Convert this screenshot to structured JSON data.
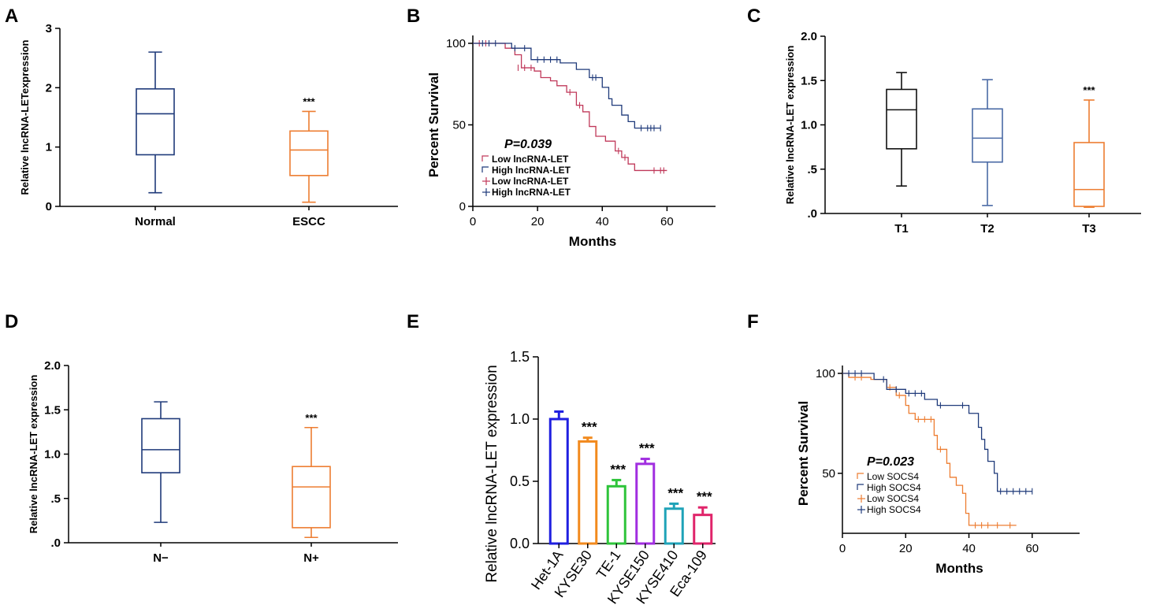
{
  "panels": {
    "A": {
      "letter": "A"
    },
    "B": {
      "letter": "B"
    },
    "C": {
      "letter": "C"
    },
    "D": {
      "letter": "D"
    },
    "E": {
      "letter": "E"
    },
    "F": {
      "letter": "F"
    }
  },
  "chart_data": [
    {
      "panel": "A",
      "type": "box",
      "ylabel": "Relative lncRNA-LETexpression",
      "ylim": [
        0,
        3
      ],
      "yticks": [
        "0",
        "1",
        "2",
        "3"
      ],
      "categories": [
        "Normal",
        "ESCC"
      ],
      "boxes": [
        {
          "name": "Normal",
          "min": 0.23,
          "q1": 0.87,
          "median": 1.56,
          "q3": 1.98,
          "max": 2.6,
          "color": "#1f3a7a"
        },
        {
          "name": "ESCC",
          "min": 0.07,
          "q1": 0.52,
          "median": 0.95,
          "q3": 1.27,
          "max": 1.6,
          "color": "#ed7d31",
          "annotation": "***"
        }
      ]
    },
    {
      "panel": "B",
      "type": "survival",
      "xlabel": "Months",
      "ylabel": "Percent Survival",
      "xlim": [
        0,
        75
      ],
      "ylim": [
        0,
        100
      ],
      "xticks": [
        "0",
        "20",
        "40",
        "60"
      ],
      "yticks": [
        "0",
        "50",
        "100"
      ],
      "pvalue": "P=0.039",
      "legend": [
        "Low lncRNA-LET",
        "High lncRNA-LET",
        "Low lncRNA-LET",
        "High lncRNA-LET"
      ],
      "series": [
        {
          "name": "Low lncRNA-LET",
          "color": "#c0395a",
          "steps": [
            [
              0,
              100
            ],
            [
              6,
              100
            ],
            [
              10,
              97
            ],
            [
              13,
              93
            ],
            [
              15,
              85
            ],
            [
              19,
              83
            ],
            [
              21,
              79
            ],
            [
              24,
              77
            ],
            [
              26,
              74
            ],
            [
              29,
              70
            ],
            [
              32,
              62
            ],
            [
              34,
              58
            ],
            [
              36,
              49
            ],
            [
              38,
              43
            ],
            [
              41,
              40
            ],
            [
              44,
              34
            ],
            [
              46,
              30
            ],
            [
              48,
              26
            ],
            [
              50,
              22
            ],
            [
              60,
              22
            ]
          ],
          "censored": [
            [
              2,
              100
            ],
            [
              4,
              100
            ],
            [
              14,
              85
            ],
            [
              16,
              85
            ],
            [
              18,
              85
            ],
            [
              30,
              70
            ],
            [
              33,
              62
            ],
            [
              45,
              34
            ],
            [
              47,
              30
            ],
            [
              56,
              22
            ],
            [
              58,
              22
            ],
            [
              59,
              22
            ]
          ]
        },
        {
          "name": "High lncRNA-LET",
          "color": "#1f3a7a",
          "steps": [
            [
              0,
              100
            ],
            [
              8,
              100
            ],
            [
              12,
              97
            ],
            [
              18,
              90
            ],
            [
              27,
              88
            ],
            [
              32,
              84
            ],
            [
              36,
              79
            ],
            [
              40,
              73
            ],
            [
              42,
              66
            ],
            [
              43,
              62
            ],
            [
              46,
              56
            ],
            [
              48,
              52
            ],
            [
              50,
              48
            ],
            [
              58,
              48
            ]
          ],
          "censored": [
            [
              3,
              100
            ],
            [
              5,
              100
            ],
            [
              7,
              100
            ],
            [
              13,
              97
            ],
            [
              16,
              97
            ],
            [
              20,
              90
            ],
            [
              22,
              90
            ],
            [
              24,
              90
            ],
            [
              26,
              90
            ],
            [
              37,
              79
            ],
            [
              38,
              79
            ],
            [
              52,
              48
            ],
            [
              54,
              48
            ],
            [
              55,
              48
            ],
            [
              56,
              48
            ],
            [
              58,
              48
            ]
          ]
        }
      ]
    },
    {
      "panel": "C",
      "type": "box",
      "ylabel": "Relative lncRNA-LET expression",
      "ylim": [
        0,
        2
      ],
      "yticks": [
        ".0",
        ".5",
        "1.0",
        "1.5",
        "2.0"
      ],
      "categories": [
        "T1",
        "T2",
        "T3"
      ],
      "boxes": [
        {
          "name": "T1",
          "min": 0.31,
          "q1": 0.73,
          "median": 1.17,
          "q3": 1.4,
          "max": 1.59,
          "color": "#111111"
        },
        {
          "name": "T2",
          "min": 0.09,
          "q1": 0.58,
          "median": 0.85,
          "q3": 1.18,
          "max": 1.51,
          "color": "#4a6aa5"
        },
        {
          "name": "T3",
          "min": 0.07,
          "q1": 0.08,
          "median": 0.27,
          "q3": 0.8,
          "max": 1.28,
          "color": "#ed7d31",
          "annotation": "***"
        }
      ]
    },
    {
      "panel": "D",
      "type": "box",
      "ylabel": "Relative lncRNA-LET expression",
      "ylim": [
        0,
        2
      ],
      "yticks": [
        ".0",
        ".5",
        "1.0",
        "1.5",
        "2.0"
      ],
      "categories": [
        "N−",
        "N+"
      ],
      "boxes": [
        {
          "name": "N−",
          "min": 0.23,
          "q1": 0.79,
          "median": 1.05,
          "q3": 1.4,
          "max": 1.59,
          "color": "#1f3a7a"
        },
        {
          "name": "N+",
          "min": 0.06,
          "q1": 0.17,
          "median": 0.63,
          "q3": 0.86,
          "max": 1.3,
          "color": "#ed7d31",
          "annotation": "***"
        }
      ]
    },
    {
      "panel": "E",
      "type": "bar",
      "ylabel": "Relative lncRNA-LET expression",
      "ylim": [
        0,
        1.5
      ],
      "yticks": [
        "0.0",
        "0.5",
        "1.0",
        "1.5"
      ],
      "categories": [
        "Het-1A",
        "KYSE30",
        "TE-1",
        "KYSE150",
        "KYSE410",
        "Eca-109"
      ],
      "values": [
        1.0,
        0.82,
        0.46,
        0.64,
        0.28,
        0.23
      ],
      "errors": [
        0.06,
        0.03,
        0.05,
        0.04,
        0.04,
        0.06
      ],
      "colors": [
        "#1f1fe0",
        "#f28a1e",
        "#2ec43a",
        "#a12ee0",
        "#1fa3b8",
        "#e0246a"
      ],
      "annotations": [
        "",
        "***",
        "***",
        "***",
        "***",
        "***"
      ]
    },
    {
      "panel": "F",
      "type": "survival",
      "xlabel": "Months",
      "ylabel": "Percent Survival",
      "xlim": [
        0,
        75
      ],
      "ylim": [
        20,
        100
      ],
      "xticks": [
        "0",
        "20",
        "40",
        "60"
      ],
      "yticks": [
        "50",
        "100"
      ],
      "pvalue": "P=0.023",
      "legend": [
        "Low SOCS4",
        "High SOCS4",
        "Low SOCS4",
        "High SOCS4"
      ],
      "series": [
        {
          "name": "Low SOCS4",
          "color": "#ed7d31",
          "steps": [
            [
              0,
              100
            ],
            [
              2,
              98
            ],
            [
              9,
              97
            ],
            [
              14,
              93
            ],
            [
              17,
              89
            ],
            [
              20,
              84
            ],
            [
              21,
              80
            ],
            [
              23,
              77
            ],
            [
              28,
              77
            ],
            [
              29,
              69
            ],
            [
              30,
              62
            ],
            [
              33,
              55
            ],
            [
              34,
              48
            ],
            [
              36,
              44
            ],
            [
              38,
              40
            ],
            [
              39,
              30
            ],
            [
              40,
              24
            ],
            [
              55,
              24
            ]
          ],
          "censored": [
            [
              4,
              98
            ],
            [
              6,
              98
            ],
            [
              15,
              93
            ],
            [
              18,
              89
            ],
            [
              24,
              77
            ],
            [
              26,
              77
            ],
            [
              28,
              77
            ],
            [
              31,
              62
            ],
            [
              42,
              24
            ],
            [
              44,
              24
            ],
            [
              46,
              24
            ],
            [
              49,
              24
            ],
            [
              53,
              24
            ]
          ]
        },
        {
          "name": "High SOCS4",
          "color": "#1f3a7a",
          "steps": [
            [
              0,
              100
            ],
            [
              8,
              100
            ],
            [
              10,
              97
            ],
            [
              14,
              92
            ],
            [
              20,
              90
            ],
            [
              26,
              87
            ],
            [
              30,
              84
            ],
            [
              37,
              84
            ],
            [
              40,
              80
            ],
            [
              43,
              73
            ],
            [
              44,
              67
            ],
            [
              45,
              62
            ],
            [
              46,
              56
            ],
            [
              48,
              50
            ],
            [
              49,
              41
            ],
            [
              60,
              41
            ]
          ],
          "censored": [
            [
              2,
              100
            ],
            [
              4,
              100
            ],
            [
              6,
              100
            ],
            [
              13,
              97
            ],
            [
              17,
              92
            ],
            [
              21,
              90
            ],
            [
              23,
              90
            ],
            [
              25,
              90
            ],
            [
              31,
              84
            ],
            [
              38,
              84
            ],
            [
              50,
              41
            ],
            [
              52,
              41
            ],
            [
              54,
              41
            ],
            [
              56,
              41
            ],
            [
              58,
              41
            ],
            [
              60,
              41
            ]
          ]
        }
      ]
    }
  ]
}
